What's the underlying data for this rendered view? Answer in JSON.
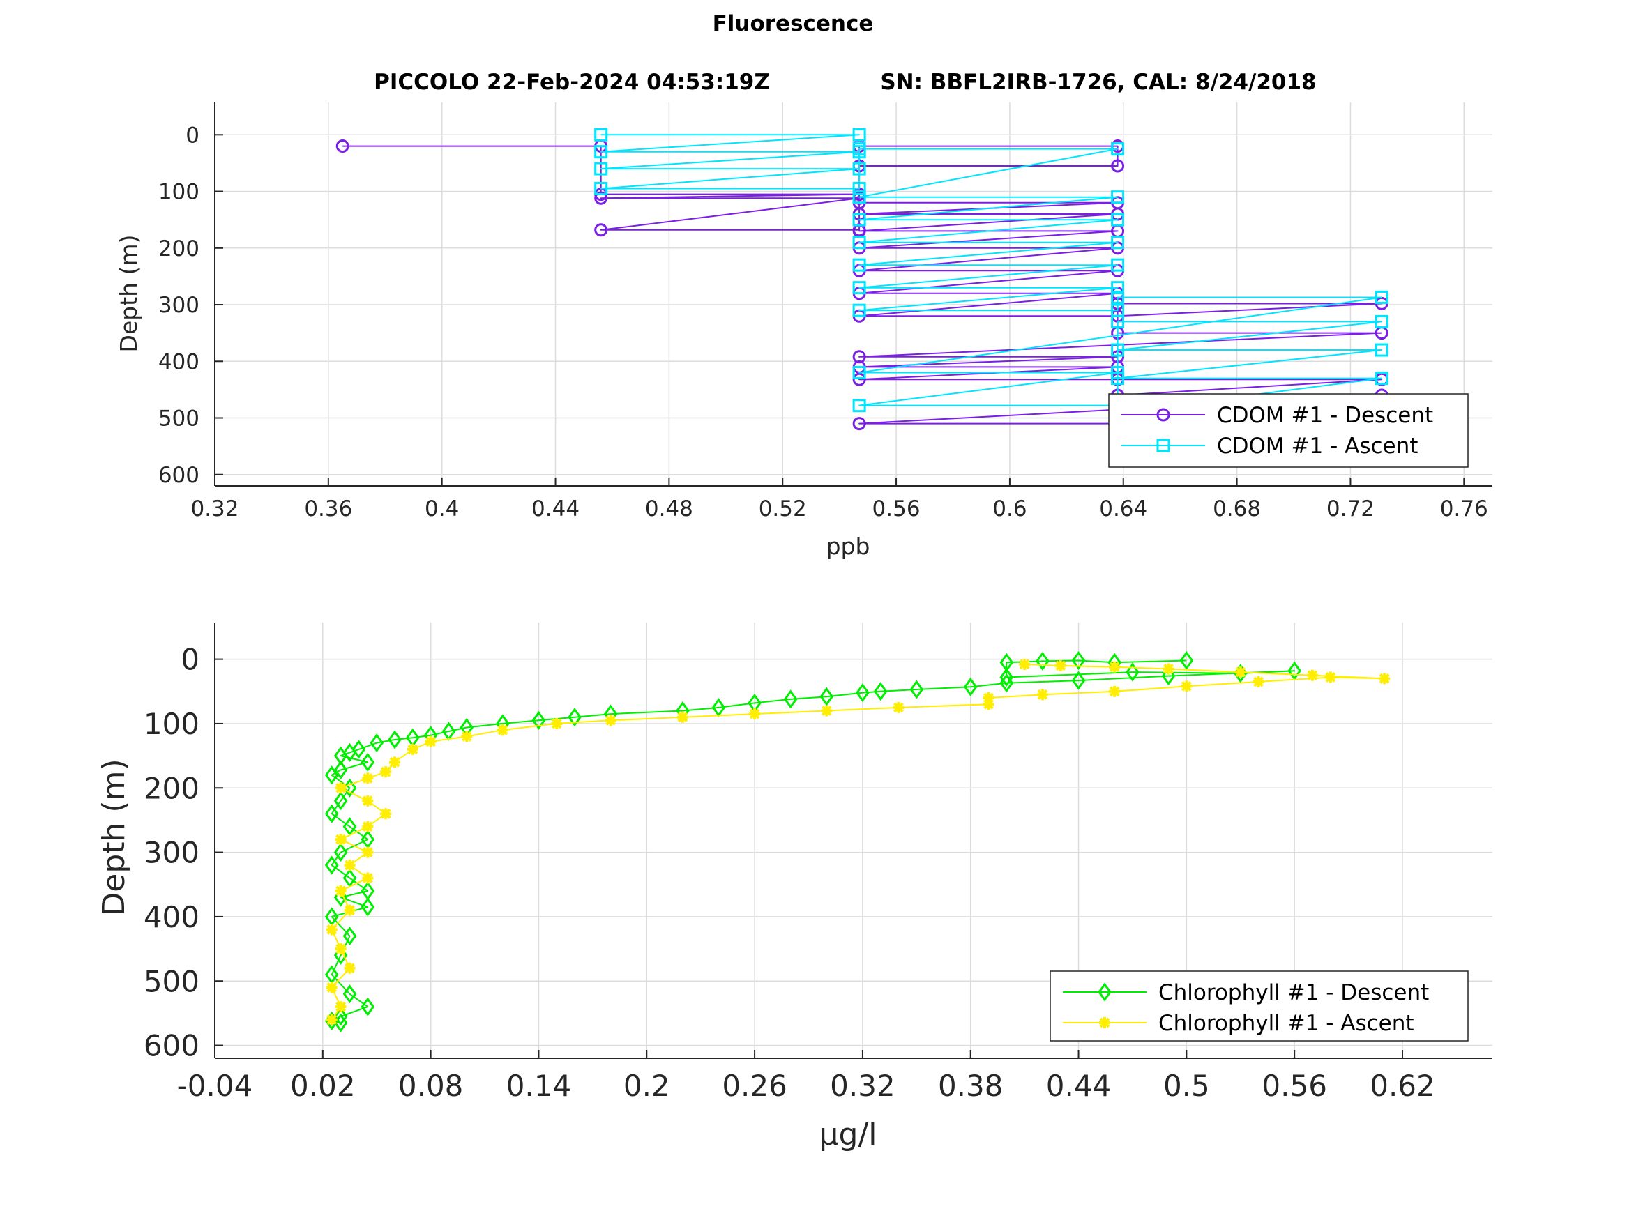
{
  "figure": {
    "title": "Fluorescence",
    "subtitle_left": "PICCOLO 22-Feb-2024 04:53:19Z",
    "subtitle_right": "SN: BBFL2IRB-1726, CAL: 8/24/2018"
  },
  "colors": {
    "cdom_descent": "#7b1fe6",
    "cdom_ascent": "#00e5ff",
    "chl_descent": "#00ee00",
    "chl_ascent": "#ffee00",
    "grid": "#dcdcdc",
    "axis": "#262626"
  },
  "chart_data": [
    {
      "type": "line",
      "name": "cdom",
      "xlabel": "ppb",
      "ylabel": "Depth (m)",
      "xlim": [
        0.32,
        0.77
      ],
      "ylim": [
        -57,
        620
      ],
      "y_reversed": true,
      "grid": true,
      "legend_position": "bottom-right",
      "xticks": [
        0.32,
        0.36,
        0.4,
        0.44,
        0.48,
        0.52,
        0.56,
        0.6,
        0.64,
        0.68,
        0.72,
        0.76
      ],
      "xtick_labels": [
        "0.32",
        "0.36",
        "0.4",
        "0.44",
        "0.48",
        "0.52",
        "0.56",
        "0.6",
        "0.64",
        "0.68",
        "0.72",
        "0.76"
      ],
      "yticks": [
        0,
        100,
        200,
        300,
        400,
        500,
        600
      ],
      "ytick_labels": [
        "0",
        "100",
        "200",
        "300",
        "400",
        "500",
        "600"
      ],
      "series": [
        {
          "name": "CDOM #1 - Descent",
          "marker": "circle",
          "color": "#7b1fe6",
          "points": [
            [
              0.365,
              20
            ],
            [
              0.456,
              20
            ],
            [
              0.456,
              105
            ],
            [
              0.547,
              105
            ],
            [
              0.456,
              112
            ],
            [
              0.547,
              112
            ],
            [
              0.456,
              168
            ],
            [
              0.547,
              168
            ],
            [
              0.547,
              20
            ],
            [
              0.638,
              20
            ],
            [
              0.638,
              55
            ],
            [
              0.547,
              55
            ],
            [
              0.547,
              120
            ],
            [
              0.638,
              120
            ],
            [
              0.547,
              140
            ],
            [
              0.638,
              140
            ],
            [
              0.547,
              170
            ],
            [
              0.638,
              170
            ],
            [
              0.547,
              200
            ],
            [
              0.638,
              200
            ],
            [
              0.547,
              240
            ],
            [
              0.638,
              240
            ],
            [
              0.547,
              280
            ],
            [
              0.638,
              280
            ],
            [
              0.547,
              320
            ],
            [
              0.638,
              320
            ],
            [
              0.731,
              298
            ],
            [
              0.638,
              298
            ],
            [
              0.638,
              350
            ],
            [
              0.731,
              350
            ],
            [
              0.547,
              392
            ],
            [
              0.638,
              392
            ],
            [
              0.547,
              410
            ],
            [
              0.638,
              410
            ],
            [
              0.547,
              432
            ],
            [
              0.638,
              432
            ],
            [
              0.731,
              432
            ],
            [
              0.638,
              460
            ],
            [
              0.731,
              460
            ],
            [
              0.547,
              510
            ],
            [
              0.638,
              510
            ],
            [
              0.731,
              520
            ],
            [
              0.638,
              540
            ],
            [
              0.731,
              540
            ],
            [
              0.731,
              565
            ]
          ]
        },
        {
          "name": "CDOM #1 - Ascent",
          "marker": "square",
          "color": "#00e5ff",
          "points": [
            [
              0.456,
              0
            ],
            [
              0.547,
              0
            ],
            [
              0.456,
              30
            ],
            [
              0.547,
              30
            ],
            [
              0.456,
              60
            ],
            [
              0.547,
              60
            ],
            [
              0.456,
              95
            ],
            [
              0.547,
              95
            ],
            [
              0.547,
              25
            ],
            [
              0.638,
              25
            ],
            [
              0.547,
              110
            ],
            [
              0.638,
              110
            ],
            [
              0.547,
              150
            ],
            [
              0.638,
              150
            ],
            [
              0.547,
              190
            ],
            [
              0.638,
              190
            ],
            [
              0.547,
              230
            ],
            [
              0.638,
              230
            ],
            [
              0.547,
              270
            ],
            [
              0.638,
              270
            ],
            [
              0.547,
              310
            ],
            [
              0.638,
              310
            ],
            [
              0.638,
              287
            ],
            [
              0.731,
              287
            ],
            [
              0.547,
              420
            ],
            [
              0.638,
              420
            ],
            [
              0.547,
              478
            ],
            [
              0.638,
              478
            ],
            [
              0.638,
              330
            ],
            [
              0.731,
              330
            ],
            [
              0.638,
              380
            ],
            [
              0.731,
              380
            ],
            [
              0.638,
              430
            ],
            [
              0.731,
              430
            ],
            [
              0.638,
              490
            ],
            [
              0.731,
              490
            ],
            [
              0.638,
              560
            ],
            [
              0.731,
              560
            ]
          ]
        }
      ]
    },
    {
      "type": "line",
      "name": "chlorophyll",
      "xlabel": "µg/l",
      "ylabel": "Depth (m)",
      "xlim": [
        -0.04,
        0.67
      ],
      "ylim": [
        -57,
        620
      ],
      "y_reversed": true,
      "grid": true,
      "legend_position": "bottom-right",
      "xticks": [
        -0.04,
        0.02,
        0.08,
        0.14,
        0.2,
        0.26,
        0.32,
        0.38,
        0.44,
        0.5,
        0.56,
        0.62
      ],
      "xtick_labels": [
        "-0.04",
        "0.02",
        "0.08",
        "0.14",
        "0.2",
        "0.26",
        "0.32",
        "0.38",
        "0.44",
        "0.5",
        "0.56",
        "0.62"
      ],
      "yticks": [
        0,
        100,
        200,
        300,
        400,
        500,
        600
      ],
      "ytick_labels": [
        "0",
        "100",
        "200",
        "300",
        "400",
        "500",
        "600"
      ],
      "series": [
        {
          "name": "Chlorophyll #1 - Descent",
          "marker": "diamond",
          "color": "#00ee00",
          "points": [
            [
              0.5,
              2
            ],
            [
              0.46,
              5
            ],
            [
              0.44,
              2
            ],
            [
              0.42,
              3
            ],
            [
              0.4,
              5
            ],
            [
              0.4,
              28
            ],
            [
              0.47,
              20
            ],
            [
              0.53,
              22
            ],
            [
              0.56,
              18
            ],
            [
              0.49,
              26
            ],
            [
              0.44,
              33
            ],
            [
              0.4,
              37
            ],
            [
              0.38,
              43
            ],
            [
              0.35,
              47
            ],
            [
              0.33,
              50
            ],
            [
              0.32,
              52
            ],
            [
              0.3,
              58
            ],
            [
              0.28,
              62
            ],
            [
              0.26,
              68
            ],
            [
              0.24,
              75
            ],
            [
              0.22,
              80
            ],
            [
              0.18,
              85
            ],
            [
              0.16,
              90
            ],
            [
              0.14,
              95
            ],
            [
              0.12,
              100
            ],
            [
              0.1,
              106
            ],
            [
              0.09,
              112
            ],
            [
              0.08,
              118
            ],
            [
              0.07,
              122
            ],
            [
              0.06,
              125
            ],
            [
              0.05,
              130
            ],
            [
              0.04,
              140
            ],
            [
              0.035,
              145
            ],
            [
              0.03,
              150
            ],
            [
              0.045,
              160
            ],
            [
              0.03,
              172
            ],
            [
              0.025,
              180
            ],
            [
              0.035,
              200
            ],
            [
              0.03,
              220
            ],
            [
              0.025,
              240
            ],
            [
              0.035,
              260
            ],
            [
              0.045,
              280
            ],
            [
              0.03,
              300
            ],
            [
              0.025,
              320
            ],
            [
              0.035,
              340
            ],
            [
              0.045,
              360
            ],
            [
              0.03,
              370
            ],
            [
              0.045,
              385
            ],
            [
              0.025,
              400
            ],
            [
              0.035,
              430
            ],
            [
              0.03,
              460
            ],
            [
              0.025,
              490
            ],
            [
              0.035,
              520
            ],
            [
              0.045,
              540
            ],
            [
              0.03,
              555
            ],
            [
              0.025,
              562
            ],
            [
              0.03,
              565
            ]
          ]
        },
        {
          "name": "Chlorophyll #1 - Ascent",
          "marker": "asterisk",
          "color": "#ffee00",
          "points": [
            [
              0.025,
              560
            ],
            [
              0.03,
              540
            ],
            [
              0.025,
              510
            ],
            [
              0.035,
              480
            ],
            [
              0.03,
              450
            ],
            [
              0.025,
              420
            ],
            [
              0.035,
              390
            ],
            [
              0.03,
              360
            ],
            [
              0.045,
              340
            ],
            [
              0.035,
              320
            ],
            [
              0.045,
              300
            ],
            [
              0.03,
              280
            ],
            [
              0.045,
              260
            ],
            [
              0.055,
              240
            ],
            [
              0.045,
              220
            ],
            [
              0.03,
              200
            ],
            [
              0.045,
              185
            ],
            [
              0.055,
              175
            ],
            [
              0.06,
              160
            ],
            [
              0.07,
              140
            ],
            [
              0.08,
              128
            ],
            [
              0.1,
              120
            ],
            [
              0.12,
              110
            ],
            [
              0.15,
              100
            ],
            [
              0.18,
              95
            ],
            [
              0.22,
              90
            ],
            [
              0.26,
              85
            ],
            [
              0.3,
              80
            ],
            [
              0.34,
              75
            ],
            [
              0.39,
              70
            ],
            [
              0.39,
              60
            ],
            [
              0.42,
              55
            ],
            [
              0.46,
              50
            ],
            [
              0.5,
              42
            ],
            [
              0.54,
              35
            ],
            [
              0.58,
              28
            ],
            [
              0.61,
              30
            ],
            [
              0.57,
              25
            ],
            [
              0.53,
              20
            ],
            [
              0.49,
              15
            ],
            [
              0.46,
              12
            ],
            [
              0.43,
              10
            ],
            [
              0.41,
              8
            ]
          ]
        }
      ]
    }
  ]
}
